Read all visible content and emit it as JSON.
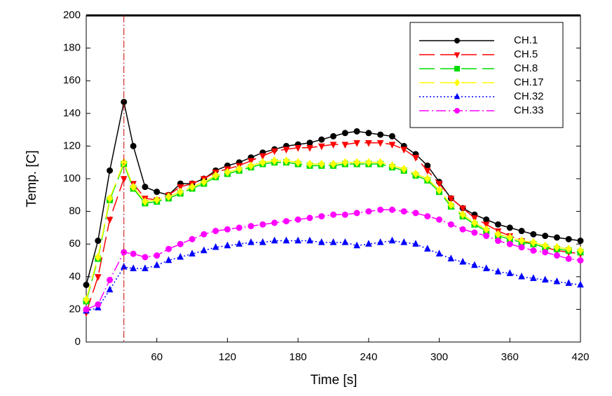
{
  "chart_data": {
    "type": "line",
    "xlabel": "Time [s]",
    "ylabel": "Temp. [C]",
    "x": [
      0,
      10,
      20,
      32,
      40,
      50,
      60,
      70,
      80,
      90,
      100,
      110,
      120,
      130,
      140,
      150,
      160,
      170,
      180,
      190,
      200,
      210,
      220,
      230,
      240,
      250,
      260,
      270,
      280,
      290,
      300,
      310,
      320,
      330,
      340,
      350,
      360,
      370,
      380,
      390,
      400,
      410,
      420
    ],
    "series": [
      {
        "name": "CH.1",
        "color": "#000000",
        "dash": "solid",
        "marker": "circle",
        "values": [
          35,
          62,
          105,
          147,
          120,
          95,
          92,
          90,
          97,
          97,
          100,
          105,
          108,
          110,
          113,
          116,
          118,
          120,
          121,
          122,
          124,
          126,
          128,
          129,
          128,
          127,
          126,
          120,
          115,
          108,
          98,
          88,
          82,
          78,
          75,
          72,
          70,
          68,
          66,
          65,
          64,
          63,
          62
        ]
      },
      {
        "name": "CH.5",
        "color": "#ff0000",
        "dash": "long-dash",
        "marker": "triangle-down",
        "values": [
          18,
          40,
          75,
          100,
          97,
          88,
          87,
          90,
          95,
          97,
          100,
          104,
          106,
          108,
          111,
          114,
          117,
          118,
          119,
          119,
          120,
          121,
          121,
          122,
          122,
          122,
          121,
          118,
          113,
          105,
          97,
          88,
          82,
          76,
          72,
          68,
          65,
          62,
          60,
          58,
          56,
          55,
          54
        ]
      },
      {
        "name": "CH.8",
        "color": "#00dd00",
        "dash": "long-dash",
        "marker": "square",
        "values": [
          25,
          51,
          87,
          109,
          94,
          85,
          86,
          88,
          91,
          94,
          97,
          101,
          103,
          105,
          107,
          109,
          110,
          110,
          109,
          108,
          108,
          108,
          109,
          109,
          109,
          109,
          107,
          105,
          102,
          99,
          92,
          83,
          77,
          72,
          68,
          65,
          63,
          61,
          60,
          58,
          57,
          56,
          55
        ]
      },
      {
        "name": "CH.17",
        "color": "#ffff00",
        "dash": "long-dash",
        "marker": "diamond",
        "values": [
          26,
          52,
          88,
          110,
          95,
          86,
          87,
          89,
          92,
          95,
          98,
          102,
          104,
          106,
          108,
          110,
          111,
          111,
          110,
          109,
          109,
          109,
          110,
          110,
          110,
          110,
          108,
          106,
          103,
          100,
          93,
          84,
          78,
          73,
          69,
          66,
          64,
          62,
          61,
          59,
          58,
          57,
          56
        ]
      },
      {
        "name": "CH.32",
        "color": "#0000ff",
        "dash": "dotted",
        "marker": "triangle",
        "values": [
          19,
          21,
          32,
          46,
          45,
          45,
          47,
          50,
          52,
          54,
          56,
          58,
          59,
          60,
          61,
          61,
          62,
          62,
          62,
          62,
          61,
          61,
          61,
          59,
          60,
          61,
          62,
          61,
          60,
          57,
          54,
          51,
          49,
          47,
          45,
          43,
          42,
          40,
          39,
          38,
          37,
          36,
          35
        ]
      },
      {
        "name": "CH.33",
        "color": "#ff00ff",
        "dash": "dash-dot",
        "marker": "circle",
        "values": [
          20,
          23,
          38,
          55,
          54,
          52,
          53,
          57,
          60,
          63,
          66,
          68,
          69,
          70,
          71,
          72,
          73,
          74,
          75,
          76,
          77,
          78,
          78,
          79,
          80,
          81,
          81,
          80,
          79,
          77,
          75,
          72,
          69,
          67,
          65,
          62,
          60,
          58,
          56,
          55,
          53,
          51,
          50
        ]
      }
    ],
    "vline": 32,
    "vline_color": "#cc0000",
    "xlim": [
      0,
      420
    ],
    "xticks": [
      60,
      120,
      180,
      240,
      300,
      360,
      420
    ],
    "ylim": [
      0,
      200
    ],
    "yticks": [
      0,
      20,
      40,
      60,
      80,
      100,
      120,
      140,
      160,
      180,
      200
    ],
    "legend": "upper-right"
  }
}
